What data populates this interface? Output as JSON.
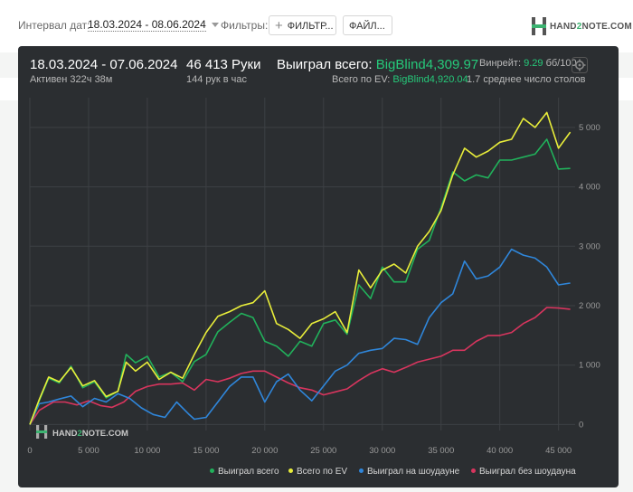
{
  "filter_bar": {
    "date_label": "Интервал дат:",
    "date_value": "18.03.2024 - 08.06.2024",
    "filters_label": "Фильтры:",
    "filter_button": "ФИЛЬТР...",
    "file_button": "ФАЙЛ...",
    "brand": {
      "pre": "HAND",
      "two": "2",
      "post": "NOTE.COM"
    }
  },
  "summary": {
    "date_range": "18.03.2024 - 07.06.2024",
    "active": "Активен 322ч 38м",
    "hands": "46 413 Руки",
    "hands_per_hour": "144 рук в час",
    "won_label": "Выиграл всего:",
    "won_value": "BigBlind4,309.97",
    "ev_label": "Всего по EV:",
    "ev_value": "BigBlind4,920.04",
    "winrate_label": "Винрейт:",
    "winrate_value": "9.29",
    "winrate_unit": "бб/100",
    "avg_tables": "1.7 среднее число столов"
  },
  "colors": {
    "won_total": "#21b15b",
    "ev_total": "#e8ed3a",
    "showdown": "#2f86da",
    "non_showdown": "#d8355e",
    "accent_green": "#26c97a",
    "panel_bg": "#2b2e31"
  },
  "watermark": {
    "pre": "HAND",
    "two": "2",
    "post": "NOTE.COM"
  },
  "chart_data": {
    "type": "line",
    "x_ticks": [
      0,
      5000,
      10000,
      15000,
      20000,
      25000,
      30000,
      35000,
      40000,
      45000
    ],
    "x_tick_labels": [
      "0",
      "5 000",
      "10 000",
      "15 000",
      "20 000",
      "25 000",
      "30 000",
      "35 000",
      "40 000",
      "45 000"
    ],
    "y_ticks": [
      0,
      1000,
      2000,
      3000,
      4000,
      5000
    ],
    "y_tick_labels": [
      "0",
      "1 000",
      "2 000",
      "3 000",
      "4 000",
      "5 000"
    ],
    "xlim": [
      0,
      46413
    ],
    "ylim": [
      -100,
      5500
    ],
    "y_axis_side": "right",
    "grid": true,
    "legend_position": "bottom-right",
    "series": [
      {
        "name": "Выиграл всего",
        "color": "#21b15b",
        "points": [
          [
            0,
            0
          ],
          [
            800,
            400
          ],
          [
            1600,
            780
          ],
          [
            2500,
            700
          ],
          [
            3500,
            980
          ],
          [
            4500,
            620
          ],
          [
            5500,
            720
          ],
          [
            6500,
            450
          ],
          [
            7500,
            560
          ],
          [
            8200,
            1180
          ],
          [
            9000,
            1040
          ],
          [
            10000,
            1150
          ],
          [
            11000,
            800
          ],
          [
            12000,
            880
          ],
          [
            13000,
            720
          ],
          [
            14000,
            1060
          ],
          [
            15000,
            1180
          ],
          [
            16000,
            1560
          ],
          [
            17000,
            1720
          ],
          [
            18000,
            1870
          ],
          [
            19000,
            1800
          ],
          [
            20000,
            1400
          ],
          [
            21000,
            1320
          ],
          [
            22000,
            1150
          ],
          [
            23000,
            1400
          ],
          [
            24000,
            1320
          ],
          [
            25000,
            1700
          ],
          [
            26000,
            1760
          ],
          [
            27000,
            1520
          ],
          [
            28000,
            2350
          ],
          [
            29000,
            2120
          ],
          [
            30000,
            2650
          ],
          [
            31000,
            2400
          ],
          [
            32000,
            2400
          ],
          [
            33000,
            2950
          ],
          [
            34000,
            3100
          ],
          [
            35000,
            3650
          ],
          [
            36000,
            4250
          ],
          [
            37000,
            4100
          ],
          [
            38000,
            4200
          ],
          [
            39000,
            4150
          ],
          [
            40000,
            4450
          ],
          [
            41000,
            4450
          ],
          [
            42000,
            4500
          ],
          [
            43000,
            4550
          ],
          [
            44000,
            4800
          ],
          [
            45000,
            4300
          ],
          [
            46000,
            4310
          ]
        ]
      },
      {
        "name": "Всего по EV",
        "color": "#e8ed3a",
        "points": [
          [
            0,
            0
          ],
          [
            800,
            420
          ],
          [
            1600,
            800
          ],
          [
            2500,
            720
          ],
          [
            3500,
            960
          ],
          [
            4500,
            650
          ],
          [
            5500,
            740
          ],
          [
            6500,
            470
          ],
          [
            7500,
            560
          ],
          [
            8200,
            1050
          ],
          [
            9000,
            900
          ],
          [
            10000,
            1050
          ],
          [
            11000,
            760
          ],
          [
            12000,
            880
          ],
          [
            13000,
            780
          ],
          [
            14000,
            1180
          ],
          [
            15000,
            1550
          ],
          [
            16000,
            1820
          ],
          [
            17000,
            1900
          ],
          [
            18000,
            2000
          ],
          [
            19000,
            2050
          ],
          [
            20000,
            2250
          ],
          [
            21000,
            1700
          ],
          [
            22000,
            1600
          ],
          [
            23000,
            1450
          ],
          [
            24000,
            1700
          ],
          [
            25000,
            1780
          ],
          [
            26000,
            1900
          ],
          [
            27000,
            1550
          ],
          [
            28000,
            2600
          ],
          [
            29000,
            2300
          ],
          [
            30000,
            2600
          ],
          [
            31000,
            2700
          ],
          [
            32000,
            2550
          ],
          [
            33000,
            3000
          ],
          [
            34000,
            3250
          ],
          [
            35000,
            3600
          ],
          [
            36000,
            4200
          ],
          [
            37000,
            4650
          ],
          [
            38000,
            4500
          ],
          [
            39000,
            4600
          ],
          [
            40000,
            4750
          ],
          [
            41000,
            4800
          ],
          [
            42000,
            5150
          ],
          [
            43000,
            5000
          ],
          [
            44000,
            5250
          ],
          [
            45000,
            4650
          ],
          [
            46000,
            4920
          ]
        ]
      },
      {
        "name": "Выиграл на шоудауне",
        "color": "#2f86da",
        "points": [
          [
            0,
            0
          ],
          [
            800,
            350
          ],
          [
            1600,
            380
          ],
          [
            2500,
            430
          ],
          [
            3500,
            480
          ],
          [
            4500,
            300
          ],
          [
            5500,
            440
          ],
          [
            6500,
            380
          ],
          [
            7500,
            520
          ],
          [
            8500,
            440
          ],
          [
            9500,
            280
          ],
          [
            10500,
            170
          ],
          [
            11500,
            120
          ],
          [
            12500,
            380
          ],
          [
            13500,
            180
          ],
          [
            14000,
            90
          ],
          [
            15000,
            120
          ],
          [
            16000,
            380
          ],
          [
            17000,
            640
          ],
          [
            18000,
            800
          ],
          [
            19000,
            800
          ],
          [
            20000,
            380
          ],
          [
            21000,
            720
          ],
          [
            22000,
            850
          ],
          [
            23000,
            580
          ],
          [
            24000,
            400
          ],
          [
            25000,
            650
          ],
          [
            26000,
            900
          ],
          [
            27000,
            1000
          ],
          [
            28000,
            1200
          ],
          [
            29000,
            1250
          ],
          [
            30000,
            1280
          ],
          [
            31000,
            1450
          ],
          [
            32000,
            1430
          ],
          [
            33000,
            1350
          ],
          [
            34000,
            1800
          ],
          [
            35000,
            2050
          ],
          [
            36000,
            2200
          ],
          [
            37000,
            2750
          ],
          [
            38000,
            2450
          ],
          [
            39000,
            2500
          ],
          [
            40000,
            2650
          ],
          [
            41000,
            2950
          ],
          [
            42000,
            2850
          ],
          [
            43000,
            2800
          ],
          [
            44000,
            2650
          ],
          [
            45000,
            2350
          ],
          [
            46000,
            2380
          ]
        ]
      },
      {
        "name": "Выиграл без шоудауна",
        "color": "#d8355e",
        "points": [
          [
            0,
            0
          ],
          [
            800,
            240
          ],
          [
            2000,
            380
          ],
          [
            3000,
            380
          ],
          [
            4000,
            330
          ],
          [
            5000,
            400
          ],
          [
            6000,
            320
          ],
          [
            7000,
            290
          ],
          [
            8000,
            380
          ],
          [
            9000,
            560
          ],
          [
            10000,
            640
          ],
          [
            11000,
            680
          ],
          [
            12000,
            680
          ],
          [
            13000,
            700
          ],
          [
            14000,
            580
          ],
          [
            15000,
            760
          ],
          [
            16000,
            720
          ],
          [
            17000,
            780
          ],
          [
            18000,
            860
          ],
          [
            19000,
            900
          ],
          [
            20000,
            900
          ],
          [
            21000,
            800
          ],
          [
            22000,
            700
          ],
          [
            23000,
            620
          ],
          [
            24000,
            580
          ],
          [
            25000,
            500
          ],
          [
            26000,
            550
          ],
          [
            27000,
            600
          ],
          [
            28000,
            740
          ],
          [
            29000,
            860
          ],
          [
            30000,
            940
          ],
          [
            31000,
            880
          ],
          [
            32000,
            960
          ],
          [
            33000,
            1050
          ],
          [
            34000,
            1100
          ],
          [
            35000,
            1150
          ],
          [
            36000,
            1250
          ],
          [
            37000,
            1250
          ],
          [
            38000,
            1400
          ],
          [
            39000,
            1500
          ],
          [
            40000,
            1500
          ],
          [
            41000,
            1550
          ],
          [
            42000,
            1700
          ],
          [
            43000,
            1800
          ],
          [
            44000,
            1970
          ],
          [
            45000,
            1960
          ],
          [
            46000,
            1940
          ]
        ]
      }
    ]
  }
}
